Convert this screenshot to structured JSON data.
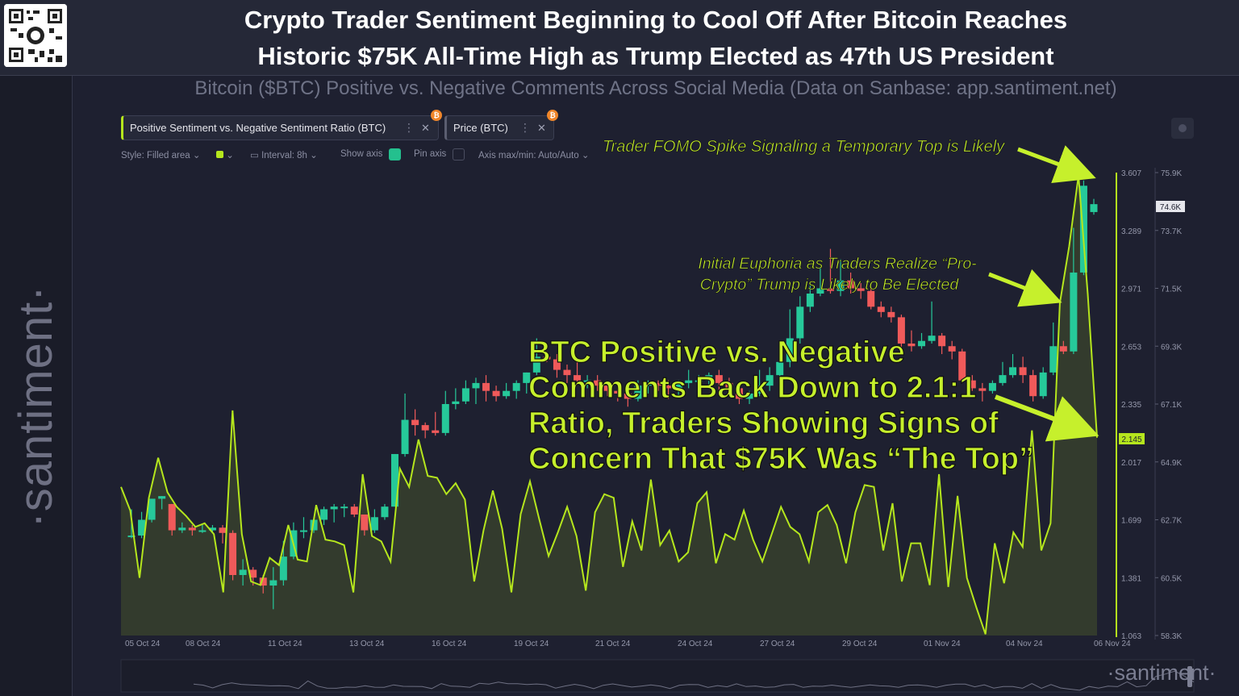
{
  "header": {
    "title_line1": "Crypto Trader Sentiment Beginning to Cool Off After Bitcoin Reaches",
    "title_line2": "Historic $75K All-Time High as Trump Elected as 47th US President",
    "subtitle": "Bitcoin ($BTC) Positive vs. Negative Comments Across Social Media (Data on Sanbase: app.santiment.net)"
  },
  "sidebar": {
    "brand": "·santiment·"
  },
  "tabs": [
    {
      "label": "Positive Sentiment vs. Negative Sentiment Ratio (BTC)",
      "badge": "₿"
    },
    {
      "label": "Price (BTC)",
      "badge": "₿"
    }
  ],
  "toolbar": {
    "style": "Style: Filled area",
    "interval": "Interval: 8h",
    "show_axis": "Show axis",
    "pin_axis": "Pin axis",
    "axis_maxmin": "Axis max/min: Auto/Auto"
  },
  "watermark": "·santiment·",
  "annotations": {
    "fomo": "Trader FOMO Spike Signaling a Temporary Top is Likely",
    "euphoria_line1": "Initial Euphoria as Traders Realize “Pro-",
    "euphoria_line2": "Crypto” Trump is Likely to Be Elected",
    "main_line1": "BTC Positive vs. Negative",
    "main_line2": "Comments Back Down to 2.1:1",
    "main_line3": "Ratio, Traders Showing Signs of",
    "main_line4": "Concern That $75K Was “The Top”"
  },
  "colors": {
    "sentiment_line": "#b5e61d",
    "candle_up": "#26c99a",
    "candle_down": "#f05a5a",
    "annotation": "#c6f02c"
  },
  "chart_data": {
    "type": "line",
    "x_ticks": [
      "05 Oct 24",
      "08 Oct 24",
      "11 Oct 24",
      "13 Oct 24",
      "16 Oct 24",
      "19 Oct 24",
      "21 Oct 24",
      "24 Oct 24",
      "27 Oct 24",
      "29 Oct 24",
      "01 Nov 24",
      "04 Nov 24",
      "06 Nov 24"
    ],
    "y_left_ticks": [
      "3.607",
      "3.289",
      "2.971",
      "2.653",
      "2.335",
      "2.017",
      "1.699",
      "1.381",
      "1.063"
    ],
    "y_right_ticks": [
      "75.9K",
      "73.7K",
      "71.5K",
      "69.3K",
      "67.1K",
      "64.9K",
      "62.7K",
      "60.5K",
      "58.3K"
    ],
    "y_left_range": [
      1.063,
      3.607
    ],
    "y_right_range": [
      58.3,
      75.9
    ],
    "sentiment_current": "2.145",
    "price_current": "74.6K",
    "series": [
      {
        "name": "Positive Sentiment vs. Negative Sentiment Ratio (BTC)",
        "style": "filled-area",
        "values": [
          1.88,
          1.75,
          1.38,
          1.82,
          2.04,
          1.85,
          1.77,
          1.72,
          1.66,
          1.68,
          1.62,
          1.3,
          2.3,
          1.62,
          1.36,
          1.34,
          1.49,
          1.45,
          1.67,
          1.48,
          1.47,
          1.78,
          1.59,
          1.58,
          1.56,
          1.3,
          1.95,
          1.61,
          1.58,
          1.47,
          1.98,
          1.88,
          2.14,
          1.94,
          1.93,
          1.84,
          1.9,
          1.81,
          1.36,
          1.64,
          1.86,
          1.65,
          1.3,
          1.73,
          1.91,
          1.7,
          1.5,
          1.63,
          1.77,
          1.61,
          1.31,
          1.74,
          1.84,
          1.82,
          1.44,
          1.69,
          1.53,
          1.92,
          1.56,
          1.64,
          1.47,
          1.52,
          1.79,
          1.85,
          1.46,
          1.62,
          1.59,
          1.75,
          1.59,
          1.47,
          1.62,
          1.77,
          1.66,
          1.62,
          1.47,
          1.74,
          1.78,
          1.67,
          1.46,
          1.74,
          1.89,
          1.88,
          1.53,
          1.79,
          1.36,
          1.57,
          1.57,
          1.34,
          1.95,
          1.33,
          1.83,
          1.38,
          1.22,
          1.07,
          1.57,
          1.35,
          1.63,
          1.55,
          2.19,
          1.53,
          1.68,
          2.89,
          3.2,
          3.59,
          2.94,
          2.15
        ]
      },
      {
        "name": "Price (BTC)",
        "style": "candles",
        "ohlc": [
          [
            62.1,
            62.1,
            63.1,
            62.0
          ],
          [
            62.1,
            62.7,
            63.0,
            62.0
          ],
          [
            62.7,
            63.5,
            63.5,
            62.6
          ],
          [
            63.5,
            63.6,
            63.6,
            63.1
          ],
          [
            63.3,
            62.3,
            63.3,
            62.1
          ],
          [
            62.3,
            62.4,
            62.6,
            62.2
          ],
          [
            62.4,
            62.3,
            62.5,
            62.1
          ],
          [
            62.3,
            62.3,
            62.5,
            62.2
          ],
          [
            62.3,
            62.4,
            62.5,
            62.2
          ],
          [
            62.4,
            62.2,
            62.5,
            61.8
          ],
          [
            62.2,
            60.6,
            62.3,
            60.4
          ],
          [
            60.6,
            60.8,
            61.2,
            60.2
          ],
          [
            60.8,
            60.5,
            60.9,
            60.2
          ],
          [
            60.5,
            60.2,
            60.6,
            59.9
          ],
          [
            60.2,
            60.4,
            60.9,
            59.3
          ],
          [
            60.4,
            61.3,
            61.9,
            60.2
          ],
          [
            61.3,
            62.3,
            62.6,
            61.2
          ],
          [
            62.3,
            62.3,
            62.8,
            62.0
          ],
          [
            62.3,
            62.7,
            62.8,
            62.2
          ],
          [
            62.7,
            63.1,
            63.2,
            62.5
          ],
          [
            63.1,
            63.2,
            63.3,
            62.6
          ],
          [
            63.2,
            63.2,
            63.3,
            62.8
          ],
          [
            63.2,
            62.9,
            63.3,
            62.8
          ],
          [
            62.9,
            62.3,
            62.9,
            62.1
          ],
          [
            62.3,
            62.8,
            63.1,
            62.2
          ],
          [
            62.8,
            63.2,
            63.3,
            62.7
          ],
          [
            63.2,
            65.2,
            65.2,
            63.2
          ],
          [
            65.2,
            66.5,
            67.5,
            65.1
          ],
          [
            66.5,
            66.3,
            66.9,
            65.9
          ],
          [
            66.3,
            66.1,
            66.4,
            65.8
          ],
          [
            66.1,
            66.0,
            66.8,
            65.9
          ],
          [
            66.0,
            67.1,
            67.6,
            65.9
          ],
          [
            67.1,
            67.2,
            67.7,
            66.9
          ],
          [
            67.2,
            67.7,
            68.0,
            67.1
          ],
          [
            67.7,
            67.9,
            68.1,
            67.1
          ],
          [
            67.9,
            67.6,
            68.2,
            67.2
          ],
          [
            67.6,
            67.4,
            67.8,
            67.2
          ],
          [
            67.4,
            67.6,
            67.9,
            67.3
          ],
          [
            67.6,
            67.9,
            68.0,
            67.3
          ],
          [
            67.9,
            68.3,
            68.3,
            67.5
          ],
          [
            68.3,
            68.9,
            69.6,
            68.2
          ],
          [
            68.9,
            68.8,
            69.1,
            68.7
          ],
          [
            68.8,
            68.4,
            69.0,
            68.1
          ],
          [
            68.4,
            68.2,
            68.6,
            67.9
          ],
          [
            68.2,
            68.0,
            68.7,
            67.9
          ],
          [
            68.0,
            68.0,
            68.2,
            67.7
          ],
          [
            68.0,
            67.8,
            68.2,
            67.6
          ],
          [
            67.8,
            67.6,
            67.9,
            67.4
          ],
          [
            67.6,
            67.5,
            67.7,
            67.2
          ],
          [
            67.5,
            67.3,
            67.6,
            67.0
          ],
          [
            67.3,
            67.8,
            68.0,
            67.2
          ],
          [
            67.8,
            67.9,
            68.0,
            67.5
          ],
          [
            67.9,
            67.8,
            68.0,
            67.6
          ],
          [
            67.8,
            67.7,
            68.0,
            67.3
          ],
          [
            67.7,
            67.9,
            68.0,
            67.4
          ],
          [
            67.9,
            68.0,
            68.4,
            67.7
          ],
          [
            68.0,
            68.0,
            68.2,
            67.8
          ],
          [
            68.0,
            68.2,
            68.3,
            67.8
          ],
          [
            68.2,
            67.9,
            68.4,
            67.6
          ],
          [
            67.9,
            67.7,
            68.1,
            67.5
          ],
          [
            67.7,
            67.3,
            67.9,
            67.1
          ],
          [
            67.3,
            67.5,
            67.6,
            67.1
          ],
          [
            67.5,
            67.8,
            68.4,
            67.4
          ],
          [
            67.8,
            68.2,
            68.5,
            67.6
          ],
          [
            68.2,
            68.7,
            69.3,
            68.1
          ],
          [
            68.7,
            69.6,
            70.7,
            68.5
          ],
          [
            69.6,
            70.8,
            71.2,
            69.4
          ],
          [
            70.8,
            71.3,
            71.6,
            70.6
          ],
          [
            71.3,
            71.5,
            72.3,
            71.2
          ],
          [
            71.5,
            71.4,
            73.0,
            71.3
          ],
          [
            71.4,
            71.8,
            72.6,
            71.2
          ],
          [
            71.8,
            71.5,
            72.1,
            71.3
          ],
          [
            71.5,
            71.4,
            71.7,
            71.1
          ],
          [
            71.4,
            70.8,
            71.5,
            70.7
          ],
          [
            70.8,
            70.6,
            71.0,
            70.4
          ],
          [
            70.6,
            70.4,
            70.8,
            70.2
          ],
          [
            70.4,
            69.4,
            70.5,
            69.2
          ],
          [
            69.4,
            69.3,
            69.9,
            69.1
          ],
          [
            69.3,
            69.5,
            69.8,
            69.2
          ],
          [
            69.5,
            69.7,
            71.0,
            69.4
          ],
          [
            69.7,
            69.3,
            69.8,
            69.0
          ],
          [
            69.3,
            69.1,
            69.5,
            68.8
          ],
          [
            69.1,
            68.0,
            69.2,
            67.9
          ],
          [
            68.0,
            67.7,
            68.2,
            67.6
          ],
          [
            67.7,
            67.6,
            67.9,
            67.2
          ],
          [
            67.6,
            67.9,
            68.0,
            67.5
          ],
          [
            67.9,
            68.2,
            68.7,
            67.8
          ],
          [
            68.2,
            68.5,
            69.0,
            68.1
          ],
          [
            68.5,
            68.2,
            68.9,
            67.9
          ],
          [
            68.2,
            67.4,
            68.4,
            67.2
          ],
          [
            67.4,
            68.3,
            68.5,
            67.3
          ],
          [
            68.3,
            69.3,
            70.2,
            68.2
          ],
          [
            69.3,
            69.1,
            69.5,
            69.0
          ],
          [
            69.1,
            72.1,
            73.8,
            69.0
          ],
          [
            72.1,
            75.4,
            75.6,
            72.0
          ],
          [
            74.4,
            74.7,
            74.9,
            74.3
          ]
        ]
      }
    ],
    "grid": false,
    "legend": "top-left"
  }
}
